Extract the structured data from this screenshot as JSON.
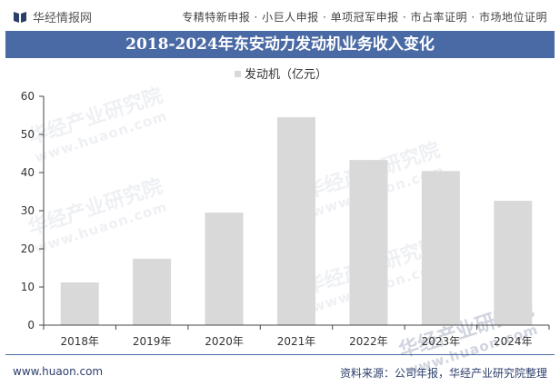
{
  "brand": {
    "name": "华经情报网",
    "icon": "book-icon"
  },
  "services": "专精特新申报 · 小巨人申报 · 单项冠军申报 · 市占率证明 · 市场地位证明",
  "colors": {
    "banner": "#4a6aa5",
    "bar": "#d9d9d9",
    "axis": "#444444"
  },
  "watermark": {
    "text": "华经产业研究院",
    "url": "www.huaon.com"
  },
  "chart_data": {
    "type": "bar",
    "title": "2018-2024年东安动力发动机业务收入变化",
    "legend": "发动机（亿元）",
    "legend_position": "top-center",
    "categories": [
      "2018年",
      "2019年",
      "2020年",
      "2021年",
      "2022年",
      "2023年",
      "2024年"
    ],
    "values": [
      11.2,
      17.4,
      29.5,
      54.5,
      43.3,
      40.4,
      32.6
    ],
    "ylim": [
      0,
      60
    ],
    "yticks": [
      0,
      10,
      20,
      30,
      40,
      50,
      60
    ],
    "grid": false
  },
  "footer": {
    "url": "www.huaon.com",
    "source": "资料来源：公司年报，华经产业研究院整理"
  }
}
